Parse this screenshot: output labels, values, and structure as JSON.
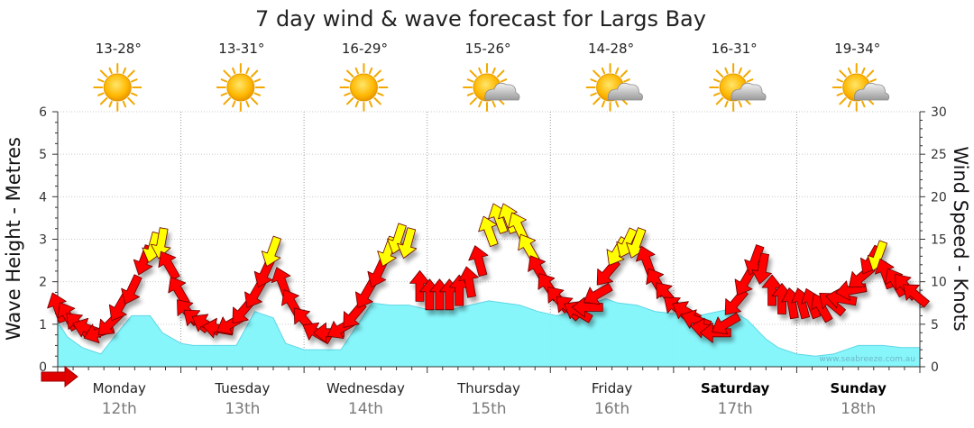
{
  "chart_data": {
    "type": "area",
    "title": "7 day wind & wave forecast for Largs Bay",
    "ylabel_left": "Wave Height - Metres",
    "ylabel_right": "Wind Speed - Knots",
    "ylim_left": [
      0,
      6
    ],
    "ylim_right": [
      0,
      30
    ],
    "yticks_left": [
      "0",
      "1",
      "2",
      "3",
      "4",
      "5",
      "6"
    ],
    "yticks_right": [
      "0",
      "5",
      "10",
      "15",
      "20",
      "25",
      "30"
    ],
    "watermark": "www.seabreeze.com.au",
    "days": [
      {
        "name": "Monday",
        "date": "12th",
        "temp": "13-28°",
        "weather": "sunny",
        "bold": false
      },
      {
        "name": "Tuesday",
        "date": "13th",
        "temp": "13-31°",
        "weather": "sunny",
        "bold": false
      },
      {
        "name": "Wednesday",
        "date": "14th",
        "temp": "16-29°",
        "weather": "sunny",
        "bold": false
      },
      {
        "name": "Thursday",
        "date": "15th",
        "temp": "15-26°",
        "weather": "partly-cloudy",
        "bold": false
      },
      {
        "name": "Friday",
        "date": "16th",
        "temp": "14-28°",
        "weather": "partly-cloudy",
        "bold": false
      },
      {
        "name": "Saturday",
        "date": "17th",
        "temp": "16-31°",
        "weather": "partly-cloudy",
        "bold": true
      },
      {
        "name": "Sunday",
        "date": "18th",
        "temp": "19-34°",
        "weather": "partly-cloudy",
        "bold": true
      }
    ],
    "wave_height_m": {
      "x_days": [
        0,
        0.08,
        0.2,
        0.35,
        0.5,
        0.6,
        0.75,
        0.85,
        1.0,
        1.1,
        1.25,
        1.45,
        1.6,
        1.75,
        1.85,
        2.0,
        2.1,
        2.3,
        2.55,
        2.7,
        2.85,
        3.0,
        3.2,
        3.5,
        3.75,
        3.9,
        4.05,
        4.2,
        4.3,
        4.45,
        4.55,
        4.7,
        4.85,
        5.0,
        5.2,
        5.45,
        5.6,
        5.75,
        5.85,
        6.0,
        6.15,
        6.3,
        6.5,
        6.7,
        6.85,
        7.0
      ],
      "values": [
        1.05,
        0.7,
        0.45,
        0.3,
        0.85,
        1.2,
        1.2,
        0.8,
        0.55,
        0.5,
        0.5,
        0.5,
        1.3,
        1.15,
        0.55,
        0.4,
        0.4,
        0.4,
        1.5,
        1.45,
        1.45,
        1.35,
        1.35,
        1.55,
        1.45,
        1.3,
        1.2,
        1.3,
        1.45,
        1.6,
        1.5,
        1.45,
        1.3,
        1.25,
        1.2,
        1.35,
        1.1,
        0.65,
        0.45,
        0.3,
        0.25,
        0.3,
        0.5,
        0.5,
        0.45,
        0.45
      ]
    },
    "wind": {
      "color_scale": {
        "light": "#ff0000",
        "moderate": "#ffff00"
      },
      "points": [
        {
          "x": 0.0,
          "speed": 7,
          "dir": 160
        },
        {
          "x": 0.08,
          "speed": 6,
          "dir": 150
        },
        {
          "x": 0.16,
          "speed": 5,
          "dir": 135
        },
        {
          "x": 0.24,
          "speed": 4.5,
          "dir": 110
        },
        {
          "x": 0.33,
          "speed": 4,
          "dir": 70
        },
        {
          "x": 0.42,
          "speed": 5,
          "dir": 45
        },
        {
          "x": 0.5,
          "speed": 7,
          "dir": 30
        },
        {
          "x": 0.6,
          "speed": 9,
          "dir": 25
        },
        {
          "x": 0.7,
          "speed": 12.5,
          "dir": 20
        },
        {
          "x": 0.77,
          "speed": 14,
          "dir": 15
        },
        {
          "x": 0.84,
          "speed": 14.5,
          "dir": 10
        },
        {
          "x": 0.9,
          "speed": 12,
          "dir": 150
        },
        {
          "x": 0.98,
          "speed": 9,
          "dir": 150
        },
        {
          "x": 1.05,
          "speed": 6.5,
          "dir": 140
        },
        {
          "x": 1.12,
          "speed": 5.5,
          "dir": 130
        },
        {
          "x": 1.2,
          "speed": 5,
          "dir": 120
        },
        {
          "x": 1.3,
          "speed": 4.5,
          "dir": 100
        },
        {
          "x": 1.4,
          "speed": 5,
          "dir": 60
        },
        {
          "x": 1.5,
          "speed": 6.5,
          "dir": 40
        },
        {
          "x": 1.6,
          "speed": 8.5,
          "dir": 30
        },
        {
          "x": 1.68,
          "speed": 11,
          "dir": 25
        },
        {
          "x": 1.74,
          "speed": 13.5,
          "dir": 20
        },
        {
          "x": 1.82,
          "speed": 10,
          "dir": 160
        },
        {
          "x": 1.9,
          "speed": 7.5,
          "dir": 150
        },
        {
          "x": 2.0,
          "speed": 5.5,
          "dir": 140
        },
        {
          "x": 2.1,
          "speed": 4,
          "dir": 120
        },
        {
          "x": 2.2,
          "speed": 4,
          "dir": 90
        },
        {
          "x": 2.3,
          "speed": 4.5,
          "dir": 60
        },
        {
          "x": 2.4,
          "speed": 6,
          "dir": 40
        },
        {
          "x": 2.5,
          "speed": 8.5,
          "dir": 30
        },
        {
          "x": 2.6,
          "speed": 11,
          "dir": 25
        },
        {
          "x": 2.68,
          "speed": 13.5,
          "dir": 20
        },
        {
          "x": 2.76,
          "speed": 15,
          "dir": 18
        },
        {
          "x": 2.84,
          "speed": 14.5,
          "dir": 15
        },
        {
          "x": 2.94,
          "speed": 9.5,
          "dir": 180
        },
        {
          "x": 3.02,
          "speed": 8.5,
          "dir": 180
        },
        {
          "x": 3.1,
          "speed": 8.5,
          "dir": 180
        },
        {
          "x": 3.18,
          "speed": 8.5,
          "dir": 180
        },
        {
          "x": 3.26,
          "speed": 9,
          "dir": 180
        },
        {
          "x": 3.34,
          "speed": 10,
          "dir": 170
        },
        {
          "x": 3.42,
          "speed": 12.5,
          "dir": 165
        },
        {
          "x": 3.5,
          "speed": 16,
          "dir": 160
        },
        {
          "x": 3.58,
          "speed": 17.5,
          "dir": 160
        },
        {
          "x": 3.66,
          "speed": 17.5,
          "dir": 160
        },
        {
          "x": 3.74,
          "speed": 16.5,
          "dir": 155
        },
        {
          "x": 3.82,
          "speed": 14,
          "dir": 150
        },
        {
          "x": 3.9,
          "speed": 11.5,
          "dir": 150
        },
        {
          "x": 3.98,
          "speed": 9.5,
          "dir": 145
        },
        {
          "x": 4.06,
          "speed": 8,
          "dir": 140
        },
        {
          "x": 4.14,
          "speed": 7,
          "dir": 135
        },
        {
          "x": 4.22,
          "speed": 6.5,
          "dir": 120
        },
        {
          "x": 4.3,
          "speed": 7,
          "dir": 90
        },
        {
          "x": 4.38,
          "speed": 8.5,
          "dir": 60
        },
        {
          "x": 4.46,
          "speed": 11,
          "dir": 40
        },
        {
          "x": 4.54,
          "speed": 13.5,
          "dir": 30
        },
        {
          "x": 4.62,
          "speed": 14.5,
          "dir": 25
        },
        {
          "x": 4.7,
          "speed": 14.5,
          "dir": 20
        },
        {
          "x": 4.78,
          "speed": 12.5,
          "dir": 160
        },
        {
          "x": 4.86,
          "speed": 10,
          "dir": 150
        },
        {
          "x": 4.94,
          "speed": 8.5,
          "dir": 140
        },
        {
          "x": 5.02,
          "speed": 7,
          "dir": 130
        },
        {
          "x": 5.1,
          "speed": 6.5,
          "dir": 120
        },
        {
          "x": 5.18,
          "speed": 5.5,
          "dir": 110
        },
        {
          "x": 5.26,
          "speed": 4.5,
          "dir": 100
        },
        {
          "x": 5.34,
          "speed": 4,
          "dir": 90
        },
        {
          "x": 5.42,
          "speed": 5,
          "dir": 60
        },
        {
          "x": 5.5,
          "speed": 7.5,
          "dir": 40
        },
        {
          "x": 5.58,
          "speed": 10,
          "dir": 30
        },
        {
          "x": 5.66,
          "speed": 12.5,
          "dir": 20
        },
        {
          "x": 5.72,
          "speed": 11.5,
          "dir": 10
        },
        {
          "x": 5.8,
          "speed": 9,
          "dir": 180
        },
        {
          "x": 5.88,
          "speed": 8,
          "dir": 180
        },
        {
          "x": 5.96,
          "speed": 7.5,
          "dir": 170
        },
        {
          "x": 6.04,
          "speed": 7.5,
          "dir": 165
        },
        {
          "x": 6.12,
          "speed": 7.5,
          "dir": 160
        },
        {
          "x": 6.2,
          "speed": 7,
          "dir": 150
        },
        {
          "x": 6.28,
          "speed": 7.5,
          "dir": 130
        },
        {
          "x": 6.36,
          "speed": 8,
          "dir": 100
        },
        {
          "x": 6.44,
          "speed": 9,
          "dir": 80
        },
        {
          "x": 6.52,
          "speed": 10.5,
          "dir": 50
        },
        {
          "x": 6.6,
          "speed": 12.5,
          "dir": 30
        },
        {
          "x": 6.66,
          "speed": 13,
          "dir": 20
        },
        {
          "x": 6.72,
          "speed": 11,
          "dir": 160
        },
        {
          "x": 6.8,
          "speed": 10,
          "dir": 150
        },
        {
          "x": 6.88,
          "speed": 9.5,
          "dir": 140
        },
        {
          "x": 6.96,
          "speed": 8.5,
          "dir": 130
        }
      ]
    }
  }
}
